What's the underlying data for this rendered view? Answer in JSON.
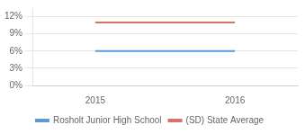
{
  "chart_data": {
    "type": "line",
    "x": [
      2015,
      2016
    ],
    "series": [
      {
        "name": "Rosholt Junior High School",
        "color": "#5b9bd5",
        "values": [
          6.0,
          6.0
        ]
      },
      {
        "name": "(SD) State Average",
        "color": "#d9726a",
        "values": [
          11.0,
          11.0
        ]
      }
    ],
    "xlim": [
      2014.55,
      2016.45
    ],
    "xticks": [
      2015,
      2016
    ],
    "ylim": [
      0,
      13.5
    ],
    "yticks": [
      {
        "value": 0,
        "label": "0%"
      },
      {
        "value": 3,
        "label": "3%"
      },
      {
        "value": 6,
        "label": "6%"
      },
      {
        "value": 9,
        "label": "9%"
      },
      {
        "value": 12,
        "label": "12%"
      }
    ],
    "grid": "y",
    "legend": "bottom"
  }
}
